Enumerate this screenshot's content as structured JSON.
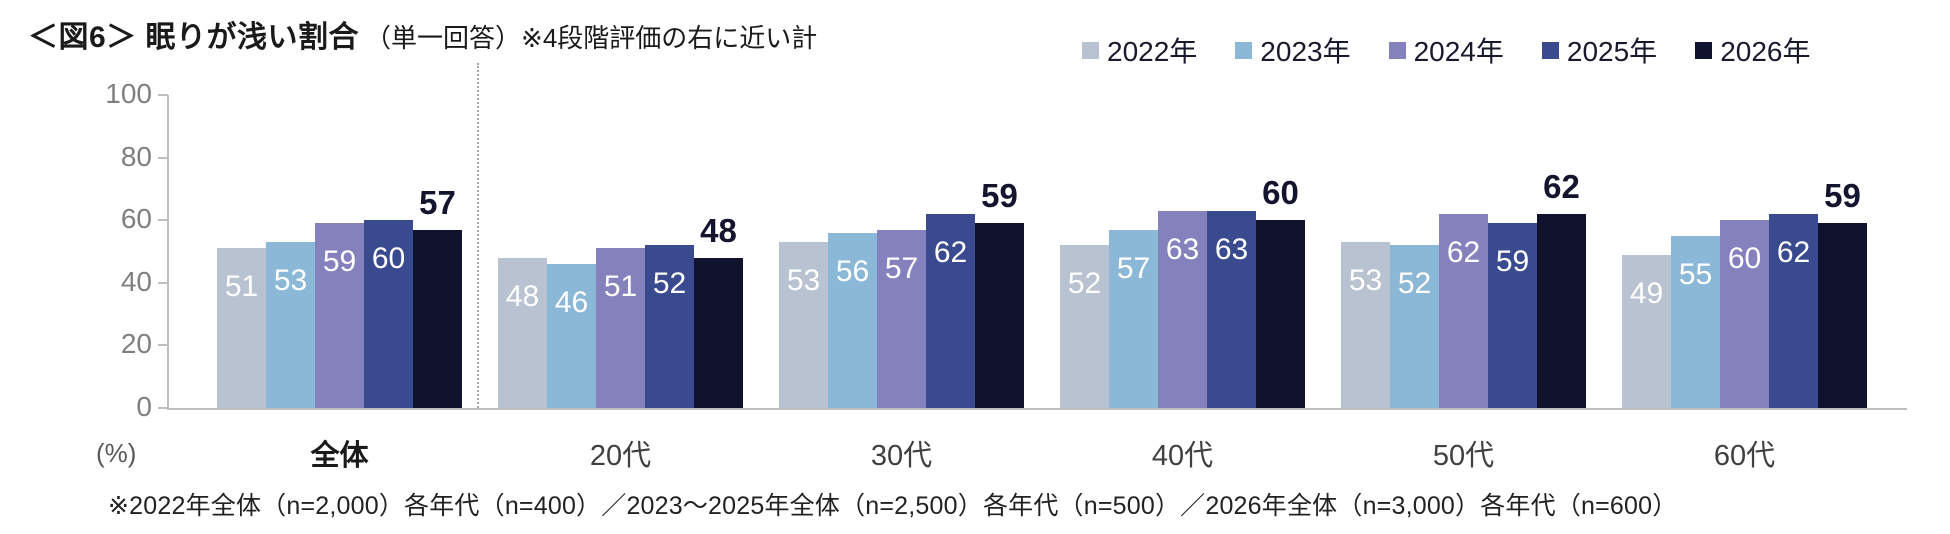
{
  "title": {
    "main": "＜図6＞ 眠りが浅い割合",
    "sub": "（単一回答）※4段階評価の右に近い計"
  },
  "chart_data": {
    "type": "bar",
    "categories": [
      "全体",
      "20代",
      "30代",
      "40代",
      "50代",
      "60代"
    ],
    "emphasized_category": "全体",
    "series": [
      {
        "name": "2022年",
        "color": "#b8c2d0",
        "values": [
          51,
          48,
          53,
          52,
          53,
          49
        ]
      },
      {
        "name": "2023年",
        "color": "#8cb8d8",
        "values": [
          53,
          46,
          56,
          57,
          52,
          55
        ]
      },
      {
        "name": "2024年",
        "color": "#8481bd",
        "values": [
          59,
          51,
          57,
          63,
          62,
          60
        ]
      },
      {
        "name": "2025年",
        "color": "#3a4a8f",
        "values": [
          60,
          52,
          62,
          63,
          59,
          62
        ]
      },
      {
        "name": "2026年",
        "color": "#10132b",
        "values": [
          57,
          48,
          59,
          60,
          62,
          59
        ]
      }
    ],
    "ylabel": "(%)",
    "ylim": [
      0,
      100
    ],
    "yticks": [
      0,
      20,
      40,
      60,
      80,
      100
    ],
    "grid": false,
    "legend_position": "top-right",
    "label_note": "2022-2025 values printed in white inside bars; 2026 value printed bold above bar",
    "emphasis_label_color": "#15142e",
    "axis_color": "#bfbfbf",
    "tick_text_color": "#7f7f7f"
  },
  "footnote": "※2022年全体（n=2,000）各年代（n=400）／2023～2025年全体（n=2,500）各年代（n=500）／2026年全体（n=3,000）各年代（n=600）"
}
